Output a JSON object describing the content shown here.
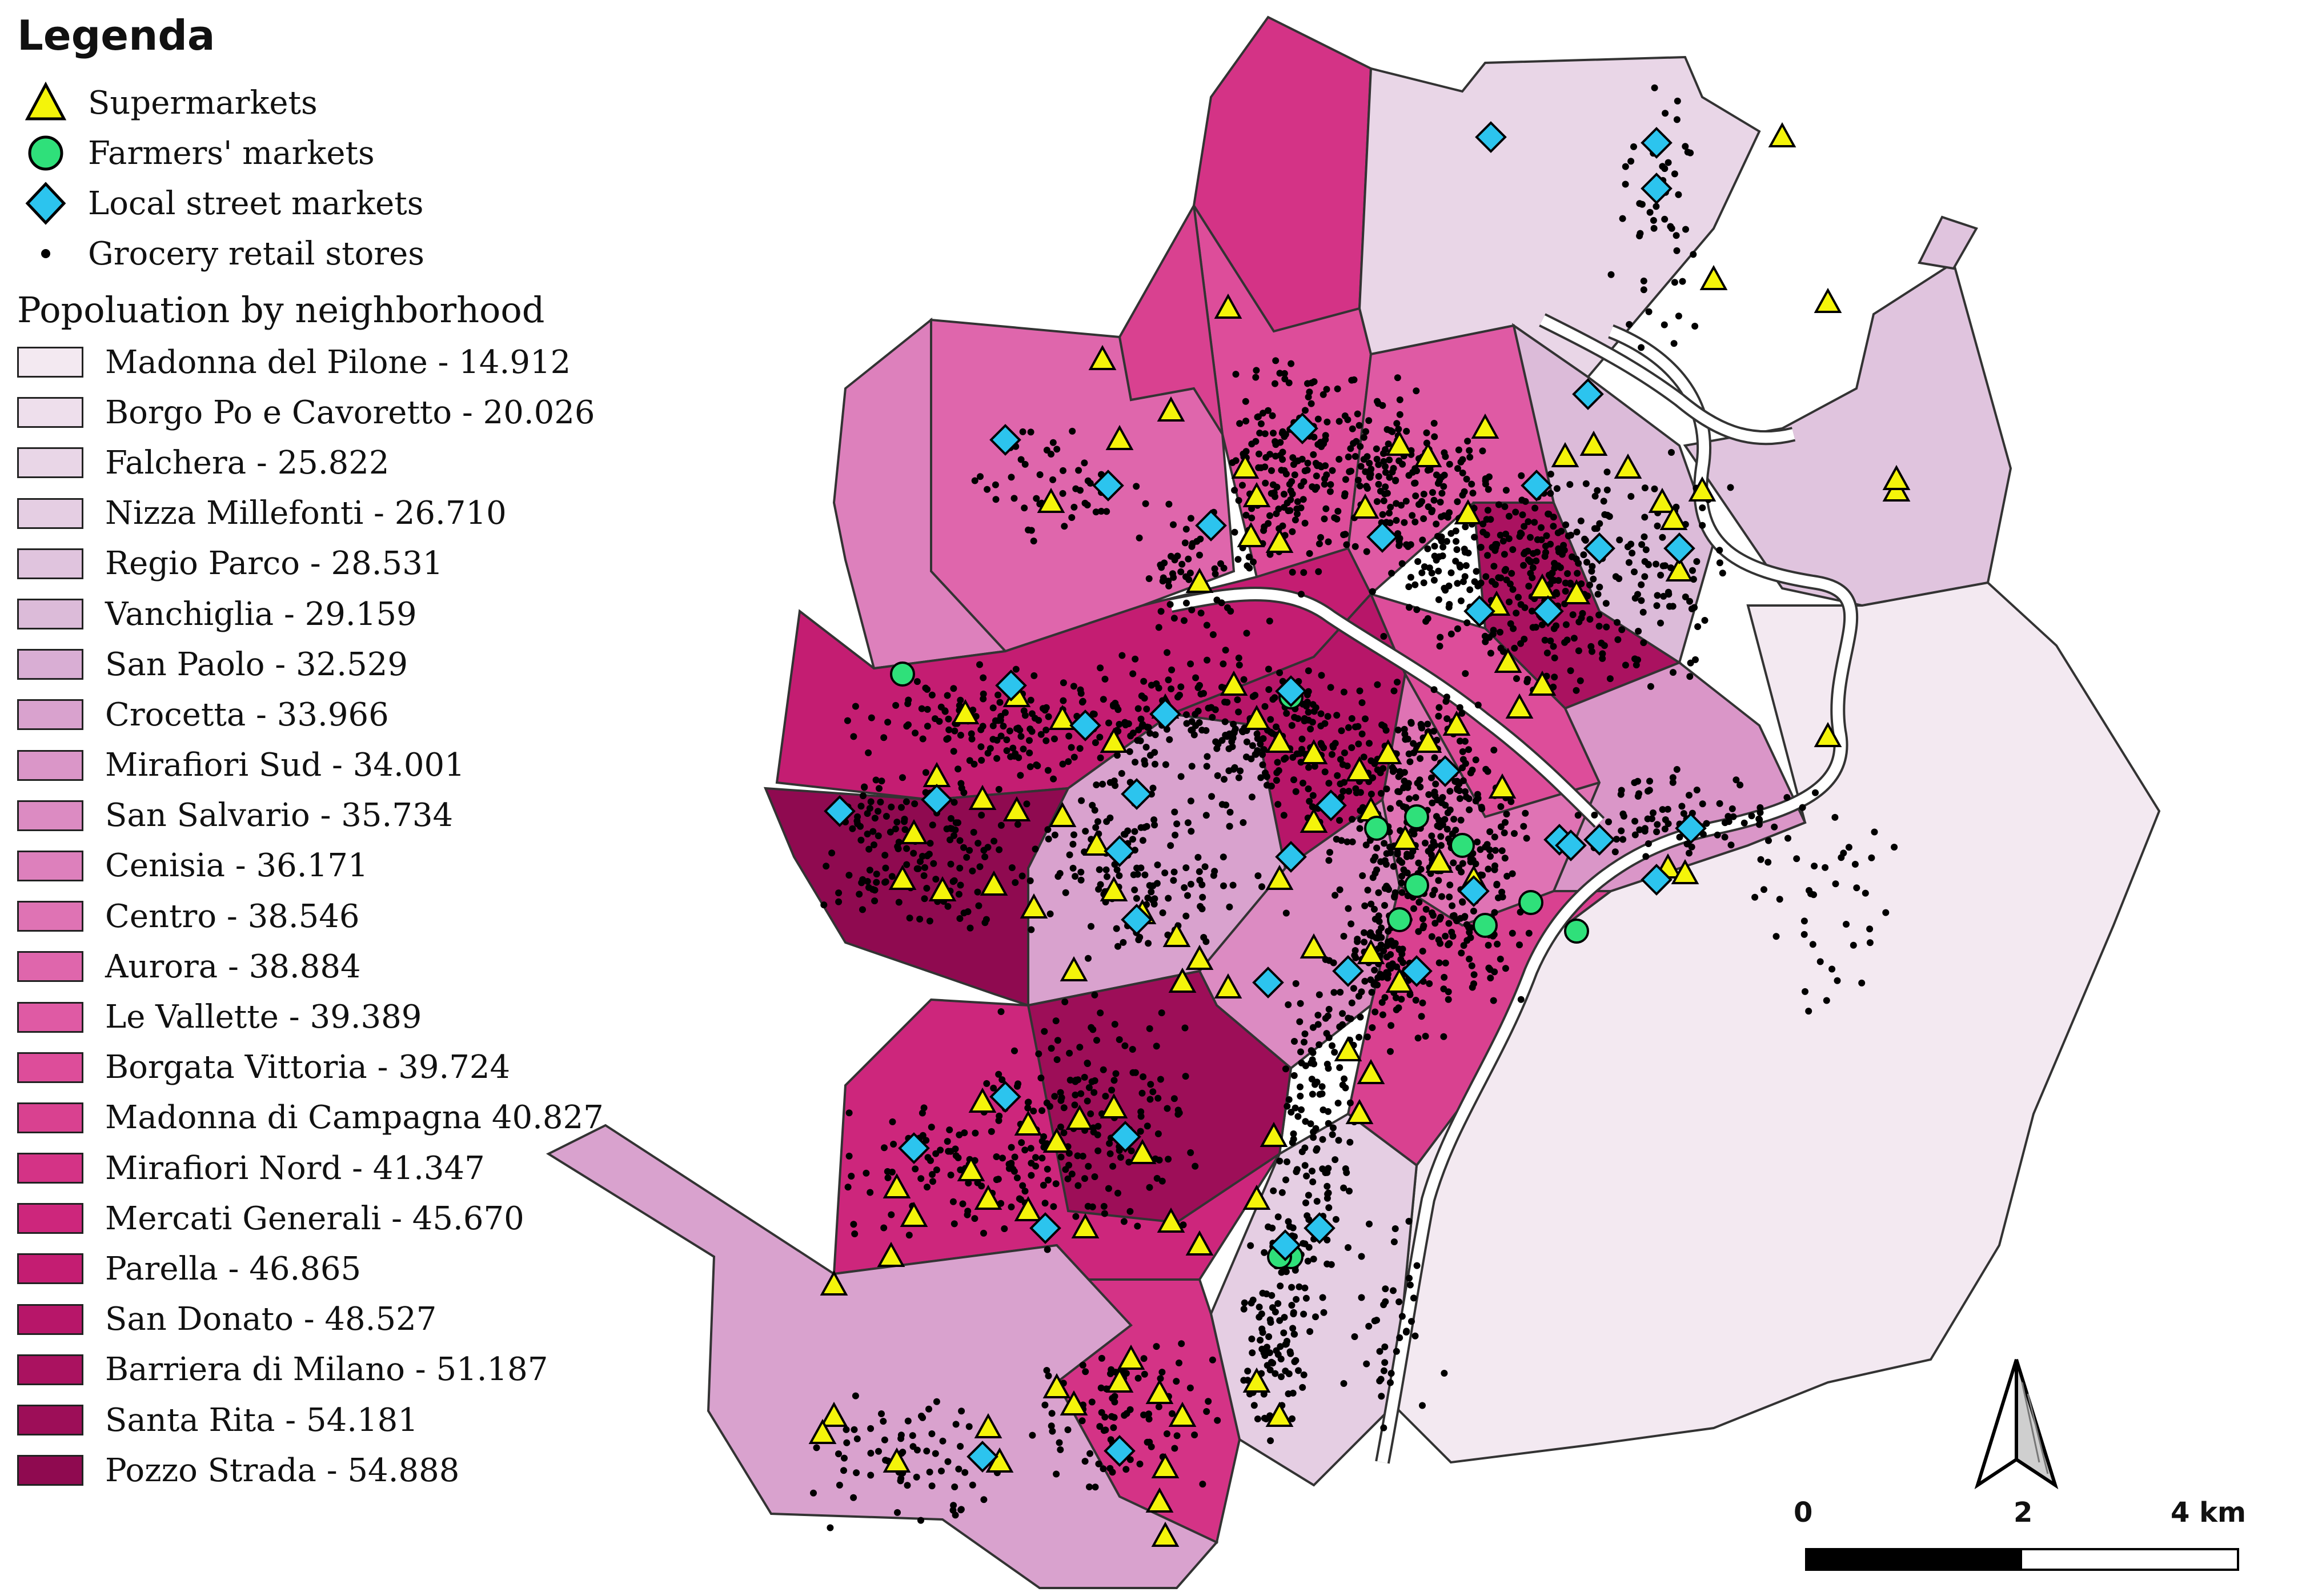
{
  "legend": {
    "title": "Legenda",
    "symbols": [
      {
        "label": "Supermarkets",
        "shape": "triangle",
        "fill": "#f4f40a"
      },
      {
        "label": "Farmers' markets",
        "shape": "circle",
        "fill": "#2fe07a"
      },
      {
        "label": "Local street markets",
        "shape": "diamond",
        "fill": "#2cc4ee"
      },
      {
        "label": "Grocery retail stores",
        "shape": "dot",
        "fill": "#000000"
      }
    ],
    "population_title": "Popoluation by neighborhood",
    "neighborhoods": [
      {
        "label": "Madonna del Pilone - 14.912",
        "color": "#f3e9f1"
      },
      {
        "label": "Borgo Po e Cavoretto - 20.026",
        "color": "#eedfec"
      },
      {
        "label": "Falchera - 25.822",
        "color": "#e9d6e7"
      },
      {
        "label": "Nizza Millefonti - 26.710",
        "color": "#e5cee3"
      },
      {
        "label": "Regio Parco - 28.531",
        "color": "#e0c4de"
      },
      {
        "label": "Vanchiglia - 29.159",
        "color": "#dcbbd9"
      },
      {
        "label": "San Paolo - 32.529",
        "color": "#d9aed4"
      },
      {
        "label": "Crocetta - 33.966",
        "color": "#d9a2ce"
      },
      {
        "label": "Mirafiori Sud - 34.001",
        "color": "#da96c8"
      },
      {
        "label": "San Salvario - 35.734",
        "color": "#dc8bc2"
      },
      {
        "label": "Cenisia - 36.171",
        "color": "#dd80bc"
      },
      {
        "label": "Centro - 38.546",
        "color": "#df73b4"
      },
      {
        "label": "Aurora - 38.884",
        "color": "#df66ac"
      },
      {
        "label": "Le Vallette - 39.389",
        "color": "#df5aa4"
      },
      {
        "label": "Borgata Vittoria - 39.724",
        "color": "#dd4d9a"
      },
      {
        "label": "Madonna di Campagna 40.827",
        "color": "#d94190"
      },
      {
        "label": "Mirafiori Nord - 41.347",
        "color": "#d43386"
      },
      {
        "label": "Mercati Generali - 45.670",
        "color": "#cd267c"
      },
      {
        "label": "Parella - 46.865",
        "color": "#c41d72"
      },
      {
        "label": "San Donato - 48.527",
        "color": "#b71669"
      },
      {
        "label": "Barriera di Milano - 51.187",
        "color": "#aa1260"
      },
      {
        "label": "Santa Rita - 54.181",
        "color": "#9d0e58"
      },
      {
        "label": "Pozzo Strada - 54.888",
        "color": "#8f0a50"
      }
    ]
  },
  "scale": {
    "ticks": [
      "0",
      "2",
      "4 km"
    ]
  },
  "colors": {
    "outline": "#333333",
    "river": "#ffffff",
    "text": "#111111"
  }
}
